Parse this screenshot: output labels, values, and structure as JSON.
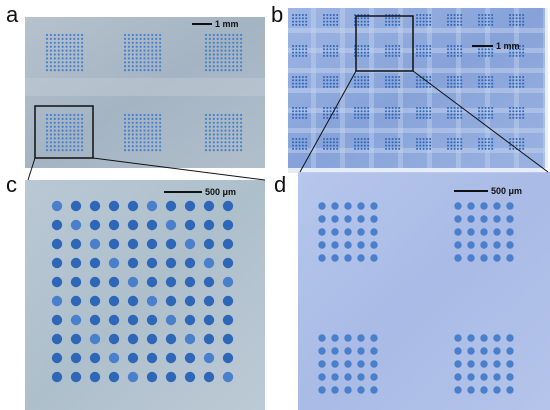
{
  "figure": {
    "panels": [
      {
        "label": "a",
        "scale_bar": "1 mm",
        "dot_grid": "10 x 10 blocks, 3 columns x 2 rows"
      },
      {
        "label": "b",
        "scale_bar": "1 mm",
        "dot_grid": "5 x 5 blocks, tiled"
      },
      {
        "label": "c",
        "scale_bar": "500 μm",
        "dot_grid": "10 x 10"
      },
      {
        "label": "d",
        "scale_bar": "500 μm",
        "dot_grid": "5 x 5 blocks, 2 x 2"
      }
    ],
    "colors": {
      "substrate_a": "#a9b8c6",
      "substrate_b": "#8fa9dc",
      "substrate_c": "#b2c3cf",
      "substrate_d": "#afc0e8",
      "dot_dark": "#2f67b8",
      "dot_mid": "#4a7fcb"
    }
  }
}
